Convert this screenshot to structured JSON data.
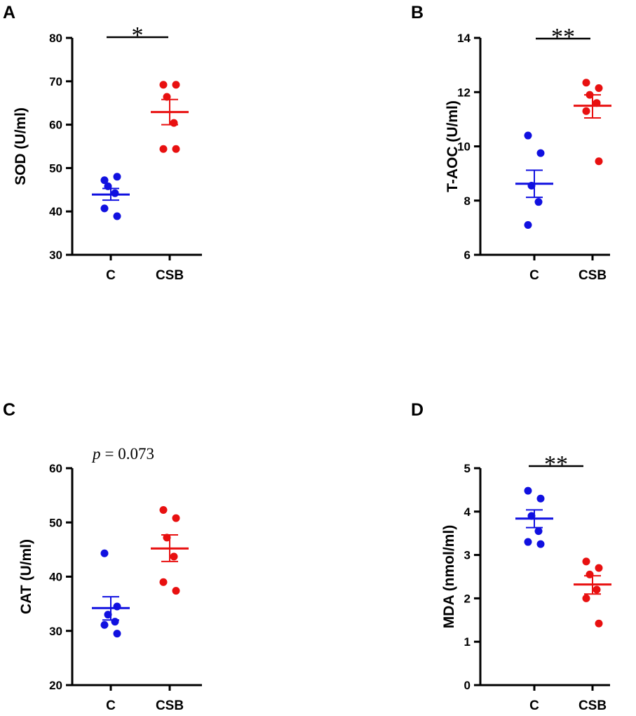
{
  "chart_data": [
    {
      "panel": "A",
      "type": "scatter",
      "ylabel": "SOD (U/ml)",
      "ylim": [
        30,
        80
      ],
      "yticks": [
        30,
        40,
        50,
        60,
        70,
        80
      ],
      "categories": [
        "C",
        "CSB"
      ],
      "significance": "*",
      "groups": [
        {
          "name": "C",
          "color": "#1010e0",
          "points": [
            47.2,
            48.0,
            45.8,
            44.2,
            40.7,
            38.9
          ],
          "mean": 43.9,
          "sem_low": 42.6,
          "sem_high": 45.3
        },
        {
          "name": "CSB",
          "color": "#e81010",
          "points": [
            69.2,
            69.2,
            66.4,
            60.4,
            54.4,
            54.4
          ],
          "mean": 62.9,
          "sem_low": 60.0,
          "sem_high": 65.8
        }
      ]
    },
    {
      "panel": "B",
      "type": "scatter",
      "ylabel": "T-AOC (U/ml)",
      "ylim": [
        6,
        14
      ],
      "yticks": [
        6,
        8,
        10,
        12,
        14
      ],
      "categories": [
        "C",
        "CSB"
      ],
      "significance": "**",
      "groups": [
        {
          "name": "C",
          "color": "#1010e0",
          "points": [
            10.4,
            9.75,
            8.55,
            7.95,
            7.1
          ],
          "mean": 8.62,
          "sem_low": 8.12,
          "sem_high": 9.12
        },
        {
          "name": "CSB",
          "color": "#e81010",
          "points": [
            12.35,
            12.15,
            11.9,
            11.6,
            11.3,
            9.45
          ],
          "mean": 11.5,
          "sem_low": 11.05,
          "sem_high": 11.9
        }
      ]
    },
    {
      "panel": "C",
      "type": "scatter",
      "ylabel": "CAT (U/ml)",
      "ylim": [
        20,
        60
      ],
      "yticks": [
        20,
        30,
        40,
        50,
        60
      ],
      "categories": [
        "C",
        "CSB"
      ],
      "significance": "p = 0.073",
      "groups": [
        {
          "name": "C",
          "color": "#1010e0",
          "points": [
            44.3,
            34.5,
            33.0,
            31.7,
            31.1,
            29.5
          ],
          "mean": 34.2,
          "sem_low": 32.0,
          "sem_high": 36.3
        },
        {
          "name": "CSB",
          "color": "#e81010",
          "points": [
            52.3,
            50.8,
            47.2,
            43.7,
            39.0,
            37.4
          ],
          "mean": 45.2,
          "sem_low": 42.8,
          "sem_high": 47.7
        }
      ]
    },
    {
      "panel": "D",
      "type": "scatter",
      "ylabel": "MDA (nmol/ml)",
      "ylim": [
        0,
        5
      ],
      "yticks": [
        0,
        1,
        2,
        3,
        4,
        5
      ],
      "categories": [
        "C",
        "CSB"
      ],
      "significance": "**",
      "groups": [
        {
          "name": "C",
          "color": "#1010e0",
          "points": [
            4.48,
            4.3,
            3.9,
            3.55,
            3.3,
            3.25
          ],
          "mean": 3.84,
          "sem_low": 3.63,
          "sem_high": 4.04
        },
        {
          "name": "CSB",
          "color": "#e81010",
          "points": [
            2.85,
            2.7,
            2.55,
            2.2,
            2.0,
            1.42
          ],
          "mean": 2.32,
          "sem_low": 2.1,
          "sem_high": 2.52
        }
      ]
    }
  ],
  "p_label": {
    "italic": "p",
    "rest": "= 0.073"
  }
}
